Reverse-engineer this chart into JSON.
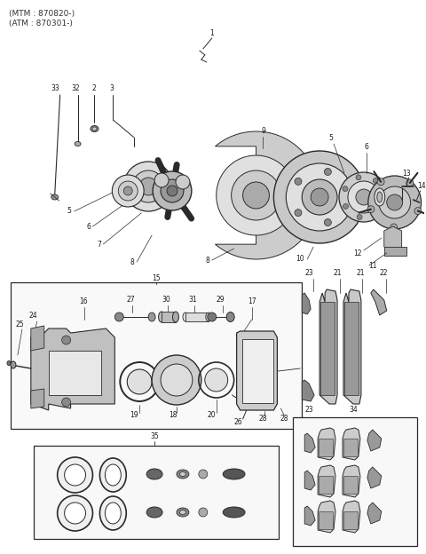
{
  "title1": "(MTM : 870820-)",
  "title2": "(ATM : 870301-)",
  "bg_color": "#f5f5f0",
  "lc": "#2a2a2a",
  "tc": "#1a1a1a",
  "fig_w": 4.8,
  "fig_h": 6.24,
  "dpi": 100
}
